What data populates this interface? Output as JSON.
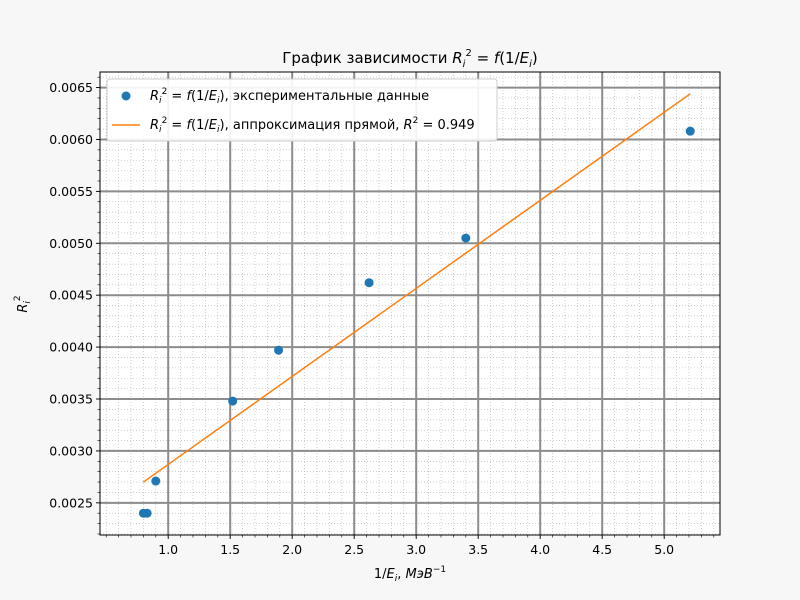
{
  "chart_data": {
    "type": "scatter",
    "title": "График зависимости R_i^2 = f(1/E_i)",
    "xlabel": "1/E_i, МэВ^-1",
    "ylabel": "R_i^2",
    "xlim": [
      0.45,
      5.45
    ],
    "ylim": [
      0.00219,
      0.00665
    ],
    "x_ticks": [
      1.0,
      1.5,
      2.0,
      2.5,
      3.0,
      3.5,
      4.0,
      4.5,
      5.0
    ],
    "y_ticks": [
      0.0025,
      0.003,
      0.0035,
      0.004,
      0.0045,
      0.005,
      0.0055,
      0.006,
      0.0065
    ],
    "x_tick_labels": [
      "1.0",
      "1.5",
      "2.0",
      "2.5",
      "3.0",
      "3.5",
      "4.0",
      "4.5",
      "5.0"
    ],
    "y_tick_labels": [
      "0.0025",
      "0.0030",
      "0.0035",
      "0.0040",
      "0.0045",
      "0.0050",
      "0.0055",
      "0.0060",
      "0.0065"
    ],
    "grid": "major and minor",
    "legend_position": "top-left",
    "series": [
      {
        "kind": "scatter",
        "name": "R_i^2 = f(1/E_i), экспериментальные данные",
        "color": "#1f77b4",
        "x": [
          0.8,
          0.83,
          0.9,
          1.52,
          1.89,
          2.62,
          3.4,
          5.21
        ],
        "y": [
          0.0024,
          0.0024,
          0.00271,
          0.00348,
          0.00397,
          0.00462,
          0.00505,
          0.00608
        ]
      },
      {
        "kind": "line",
        "name": "R_i^2 = f(1/E_i), аппроксимация прямой, R^2 = 0.949",
        "color": "#ff7f0e",
        "x": [
          0.8,
          5.21
        ],
        "y": [
          0.0027,
          0.00644
        ]
      }
    ]
  }
}
